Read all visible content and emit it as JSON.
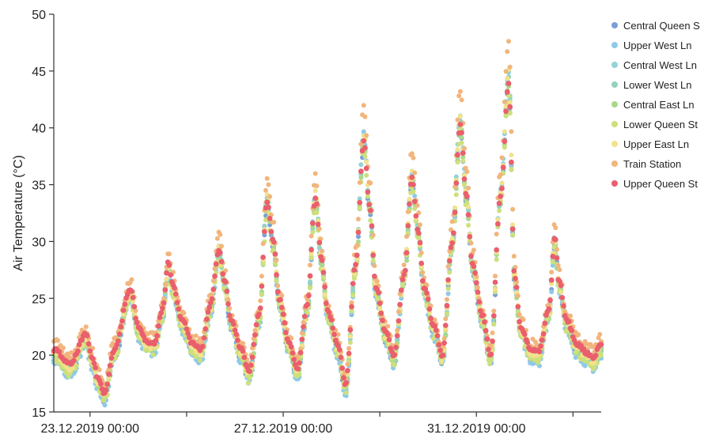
{
  "chart_data": {
    "type": "scatter",
    "title": "",
    "xlabel": "",
    "ylabel": "Air Temperature (°C)",
    "x_range": [
      "22.12.2019 06:00",
      "02.01.2020 14:00"
    ],
    "ylim": [
      15,
      50
    ],
    "y_ticks": [
      15,
      20,
      25,
      30,
      35,
      40,
      45,
      50
    ],
    "x_tick_labels": [
      "23.12.2019 00:00",
      "27.12.2019 00:00",
      "31.12.2019 00:00"
    ],
    "x_tick_dates": [
      "23.12.2019 00:00",
      "25.12.2019 00:00",
      "27.12.2019 00:00",
      "29.12.2019 00:00",
      "31.12.2019 00:00",
      "02.01.2020 00:00"
    ],
    "grid": false,
    "legend_position": "right",
    "series": [
      {
        "name": "Central Queen S",
        "color": "#7a9fd6"
      },
      {
        "name": "Upper West Ln",
        "color": "#8ec9ea"
      },
      {
        "name": "Central West Ln",
        "color": "#93d3d8"
      },
      {
        "name": "Lower West Ln",
        "color": "#94d2bd"
      },
      {
        "name": "Central East Ln",
        "color": "#a9d88a"
      },
      {
        "name": "Lower Queen St",
        "color": "#cde07c"
      },
      {
        "name": "Upper East Ln",
        "color": "#f2e28c"
      },
      {
        "name": "Train Station",
        "color": "#f1b57d"
      },
      {
        "name": "Upper Queen St",
        "color": "#ea5f6d"
      }
    ],
    "base_series": {
      "name": "Upper Queen St",
      "x": [
        "22.12.2019 06:00",
        "22.12.2019 14:00",
        "22.12.2019 22:00",
        "23.12.2019 01:00",
        "23.12.2019 04:00",
        "23.12.2019 07:00",
        "23.12.2019 12:00",
        "23.12.2019 20:00",
        "24.12.2019 00:00",
        "24.12.2019 04:00",
        "24.12.2019 08:00",
        "24.12.2019 12:00",
        "24.12.2019 15:00",
        "24.12.2019 17:00",
        "24.12.2019 22:00",
        "25.12.2019 03:00",
        "25.12.2019 07:00",
        "25.12.2019 12:00",
        "25.12.2019 16:00",
        "25.12.2019 19:00",
        "25.12.2019 22:00",
        "26.12.2019 03:00",
        "26.12.2019 07:00",
        "26.12.2019 12:00",
        "26.12.2019 16:00",
        "26.12.2019 19:00",
        "26.12.2019 22:00",
        "27.12.2019 03:00",
        "27.12.2019 07:00",
        "27.12.2019 12:00",
        "27.12.2019 16:00",
        "27.12.2019 19:00",
        "27.12.2019 22:00",
        "28.12.2019 03:00",
        "28.12.2019 07:00",
        "28.12.2019 12:00",
        "28.12.2019 16:00",
        "28.12.2019 19:00",
        "28.12.2019 22:00",
        "29.12.2019 03:00",
        "29.12.2019 07:00",
        "29.12.2019 12:00",
        "29.12.2019 16:00",
        "29.12.2019 19:00",
        "29.12.2019 22:00",
        "30.12.2019 03:00",
        "30.12.2019 07:00",
        "30.12.2019 12:00",
        "30.12.2019 16:00",
        "30.12.2019 19:00",
        "30.12.2019 22:00",
        "31.12.2019 03:00",
        "31.12.2019 07:00",
        "31.12.2019 12:00",
        "31.12.2019 16:00",
        "31.12.2019 19:00",
        "31.12.2019 22:00",
        "01.01.2020 03:00",
        "01.01.2020 07:00",
        "01.01.2020 12:00",
        "01.01.2020 15:00",
        "01.01.2020 17:00",
        "01.01.2020 21:00",
        "02.01.2020 02:00",
        "02.01.2020 07:00",
        "02.01.2020 10:00",
        "02.01.2020 14:00"
      ],
      "y": [
        20.5,
        19.2,
        21.8,
        19.8,
        18.0,
        16.6,
        20.5,
        25.8,
        22.5,
        21.2,
        21.0,
        24.0,
        28.2,
        26.2,
        23.0,
        21.0,
        20.5,
        24.5,
        29.3,
        26.5,
        23.2,
        20.5,
        18.6,
        23.5,
        33.5,
        30.0,
        25.0,
        21.0,
        18.8,
        24.5,
        33.8,
        28.5,
        24.0,
        21.0,
        17.5,
        28.0,
        38.8,
        33.0,
        26.0,
        22.0,
        20.0,
        27.0,
        35.5,
        31.0,
        26.0,
        22.5,
        20.0,
        30.0,
        40.2,
        34.0,
        28.0,
        23.5,
        20.0,
        34.0,
        43.8,
        27.0,
        22.5,
        20.5,
        20.3,
        24.0,
        30.3,
        26.5,
        23.0,
        21.0,
        20.2,
        19.8,
        21.0
      ]
    },
    "series_offsets": [
      -0.6,
      -0.9,
      -0.4,
      -0.3,
      -0.5,
      -0.7,
      -0.2,
      0.6,
      0.0
    ],
    "peak_boost": [
      0.1,
      0.5,
      0.4,
      0.2,
      0.1,
      0.0,
      0.3,
      0.9,
      0.0
    ]
  }
}
